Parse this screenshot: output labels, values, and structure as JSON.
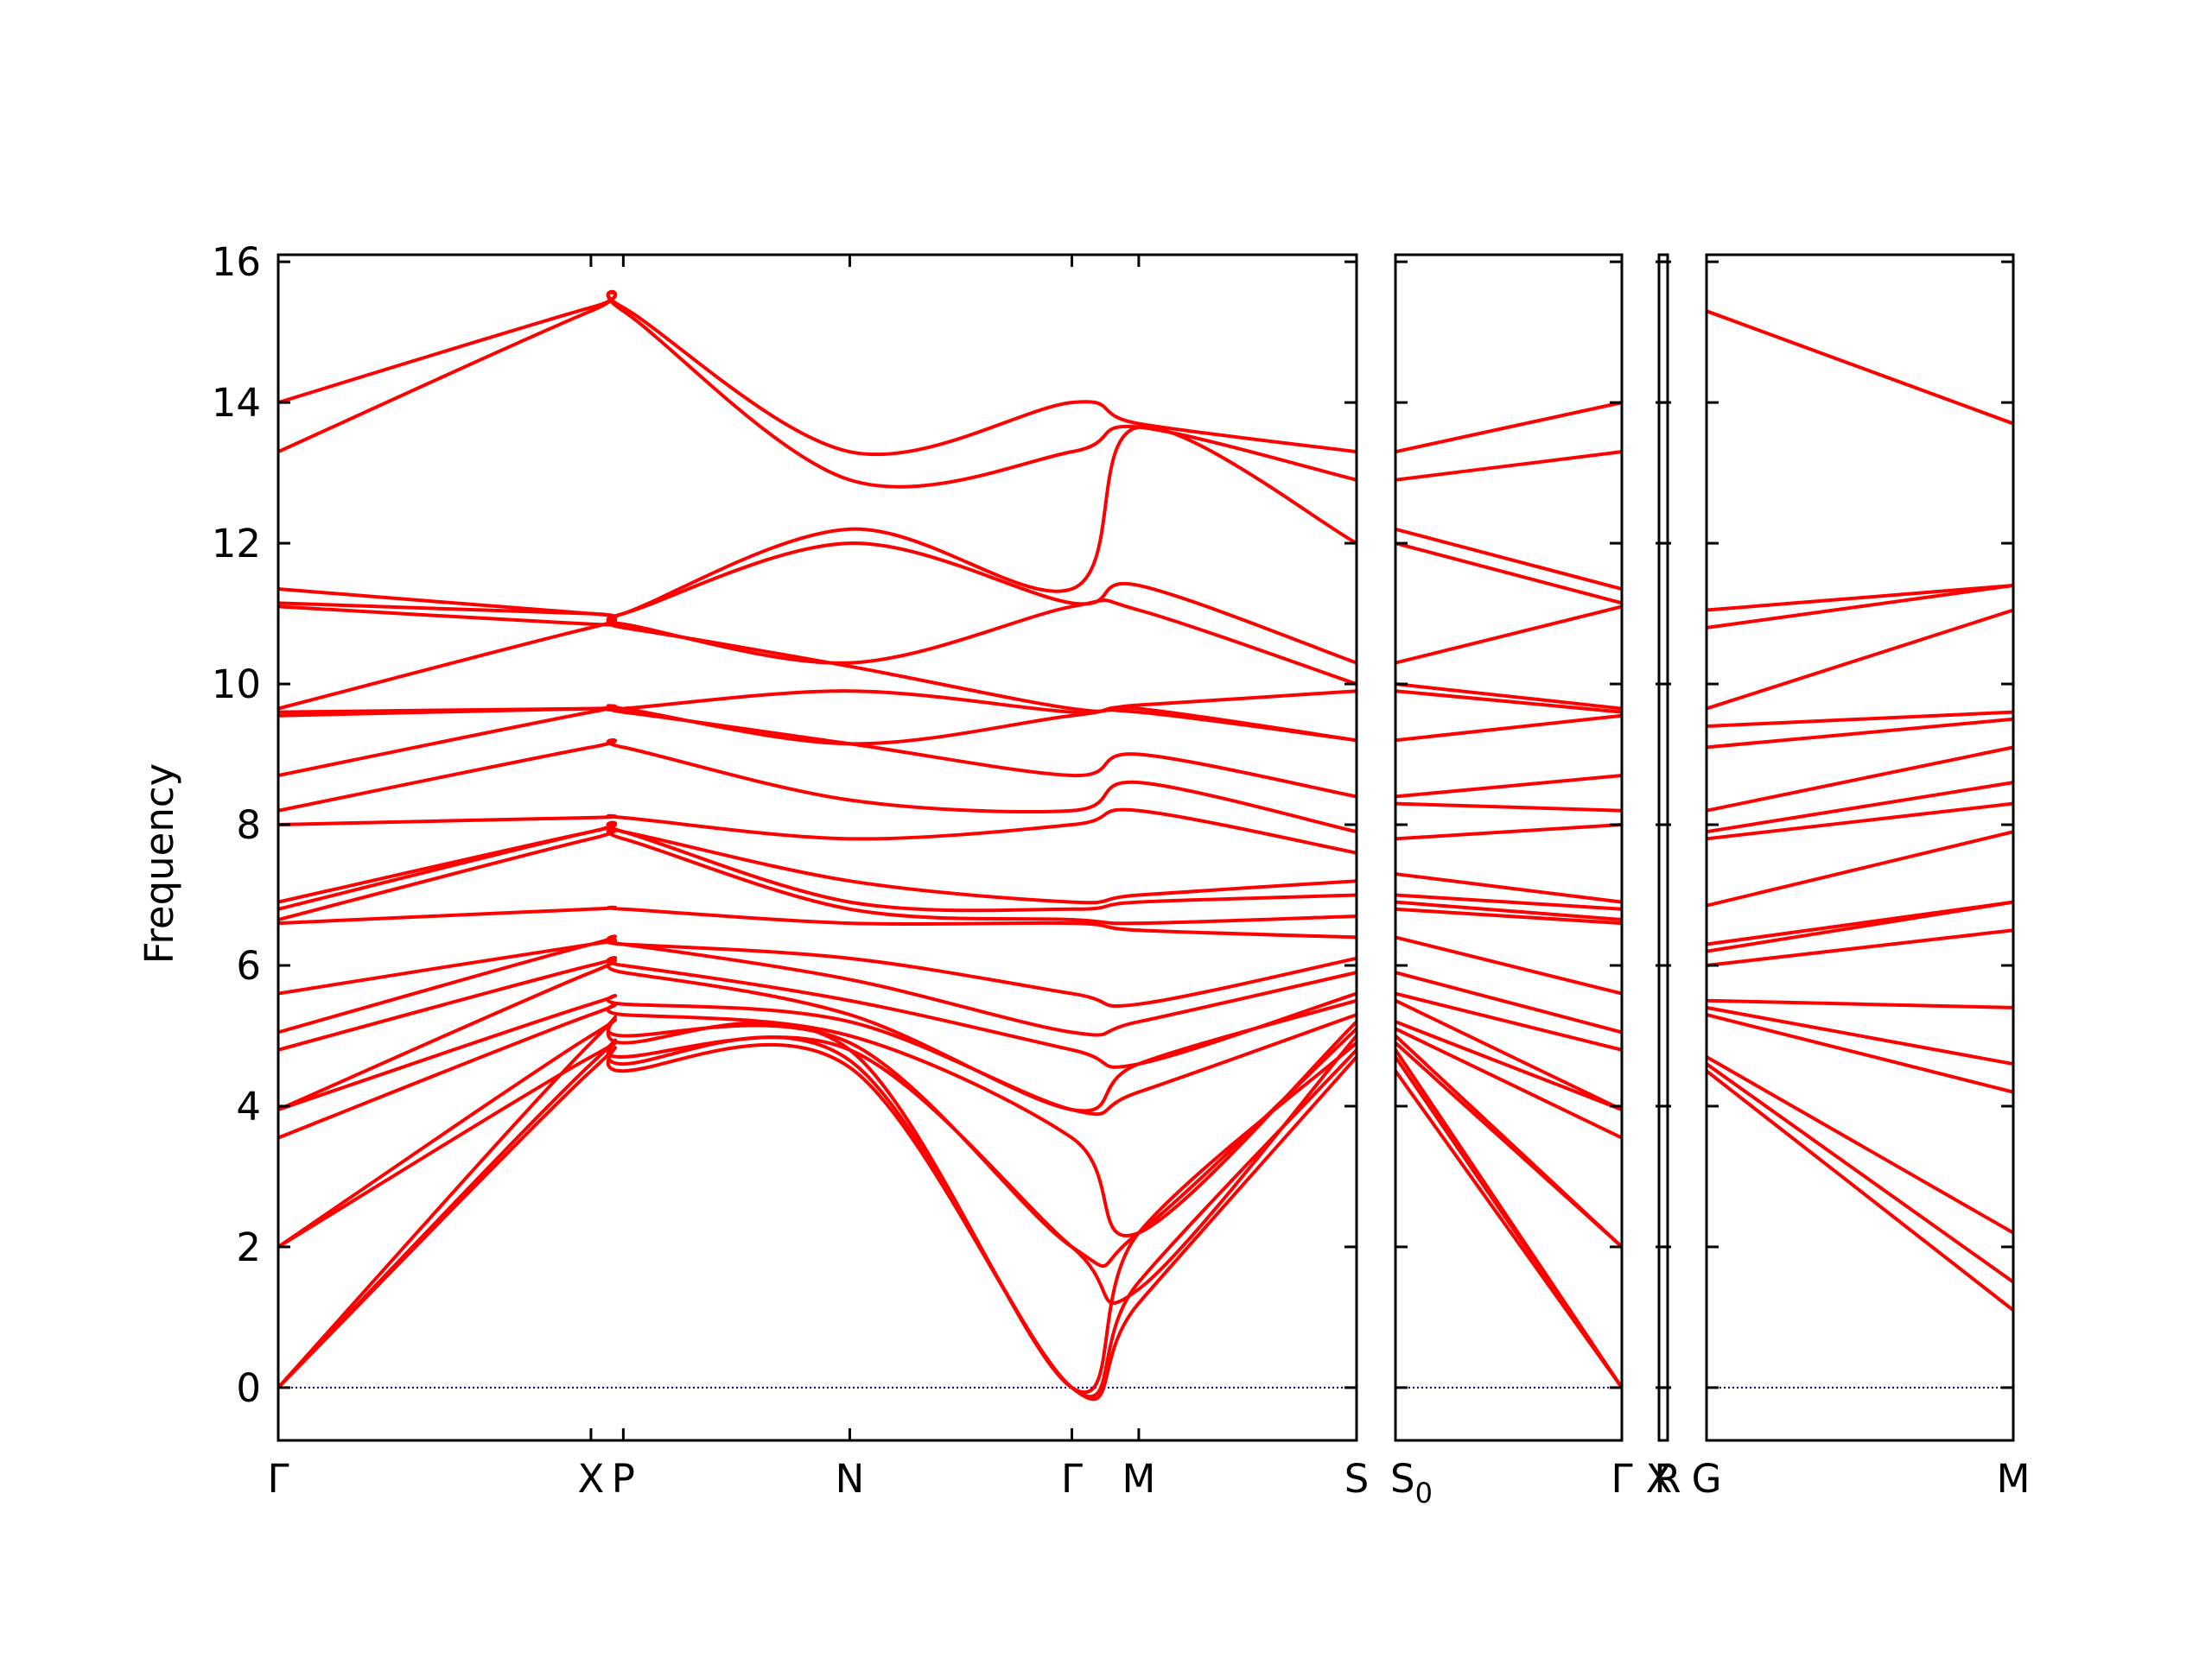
{
  "chart_data": {
    "type": "line",
    "title": "",
    "ylabel": "Frequency",
    "ylim": [
      -0.75,
      16.1
    ],
    "yticks": [
      0,
      2,
      4,
      6,
      8,
      10,
      12,
      14,
      16
    ],
    "series_color": "#ff0000",
    "zero_line_color": "#00008b",
    "grid": false,
    "panels": [
      {
        "path": [
          "Γ",
          "X",
          "P",
          "N",
          "Γ",
          "M",
          "S"
        ],
        "xlim": [
          0,
          1.0
        ],
        "point_x": [
          0,
          0.29,
          0.32,
          0.53,
          0.736,
          0.798,
          1.0
        ],
        "tick_labels": [
          "Γ",
          "X",
          "P",
          "N",
          "Γ",
          "M",
          "S"
        ]
      },
      {
        "path": [
          "S0",
          "Γ"
        ],
        "xlim": [
          0,
          1.0
        ],
        "point_x": [
          0,
          1.0
        ],
        "tick_labels": [
          "S0",
          "Γ"
        ]
      },
      {
        "path": [
          "X",
          "R"
        ],
        "xlim": [
          0,
          1.0
        ],
        "point_x": [
          0,
          1.0
        ],
        "tick_labels": [
          "X",
          "R"
        ]
      },
      {
        "path": [
          "G",
          "M"
        ],
        "xlim": [
          0,
          1.0
        ],
        "point_x": [
          0,
          1.0
        ],
        "tick_labels": [
          "G",
          "M"
        ]
      }
    ],
    "bands": {
      "panel1": [
        {
          "x": [
            0,
            0.29,
            0.32,
            0.53,
            0.736,
            0.798,
            1.0
          ],
          "y": [
            0,
            4.5,
            4.5,
            4.55,
            0,
            1.2,
            4.7
          ]
        },
        {
          "x": [
            0,
            0.29,
            0.32,
            0.53,
            0.736,
            0.798,
            1.0
          ],
          "y": [
            0,
            4.6,
            4.6,
            4.65,
            0,
            1.5,
            4.8
          ]
        },
        {
          "x": [
            0,
            0.29,
            0.32,
            0.53,
            0.736,
            0.798,
            1.0
          ],
          "y": [
            0,
            4.9,
            4.9,
            4.8,
            0,
            2.2,
            4.9
          ]
        },
        {
          "x": [
            0,
            0.29,
            0.32,
            0.53,
            0.736,
            0.798,
            1.0
          ],
          "y": [
            2.0,
            4.7,
            4.7,
            4.8,
            2.0,
            1.4,
            5.0
          ]
        },
        {
          "x": [
            0,
            0.29,
            0.32,
            0.53,
            0.736,
            0.798,
            1.0
          ],
          "y": [
            2.0,
            5.0,
            5.0,
            4.9,
            2.0,
            2.2,
            5.1
          ]
        },
        {
          "x": [
            0,
            0.29,
            0.32,
            0.53,
            0.736,
            0.798,
            1.0
          ],
          "y": [
            3.55,
            5.3,
            5.3,
            5.0,
            3.55,
            2.2,
            5.2
          ]
        },
        {
          "x": [
            0,
            0.29,
            0.32,
            0.53,
            0.736,
            0.798,
            1.0
          ],
          "y": [
            3.95,
            5.45,
            5.45,
            5.2,
            3.95,
            4.2,
            5.3
          ]
        },
        {
          "x": [
            0,
            0.29,
            0.32,
            0.53,
            0.736,
            0.798,
            1.0
          ],
          "y": [
            3.95,
            5.9,
            5.9,
            5.3,
            3.95,
            4.6,
            5.5
          ]
        },
        {
          "x": [
            0,
            0.29,
            0.32,
            0.53,
            0.736,
            0.798,
            1.0
          ],
          "y": [
            4.8,
            6.0,
            6.0,
            5.5,
            4.8,
            4.6,
            5.6
          ]
        },
        {
          "x": [
            0,
            0.29,
            0.32,
            0.53,
            0.736,
            0.798,
            1.0
          ],
          "y": [
            5.05,
            6.3,
            6.3,
            5.8,
            5.05,
            5.2,
            5.9
          ]
        },
        {
          "x": [
            0,
            0.29,
            0.32,
            0.53,
            0.736,
            0.798,
            1.0
          ],
          "y": [
            5.6,
            6.3,
            6.3,
            6.1,
            5.6,
            5.45,
            6.1
          ]
        },
        {
          "x": [
            0,
            0.29,
            0.32,
            0.53,
            0.736,
            0.798,
            1.0
          ],
          "y": [
            6.6,
            6.8,
            6.8,
            6.6,
            6.6,
            6.5,
            6.4
          ]
        },
        {
          "x": [
            0,
            0.29,
            0.32,
            0.53,
            0.736,
            0.798,
            1.0
          ],
          "y": [
            6.65,
            7.8,
            7.8,
            6.8,
            6.65,
            6.6,
            6.7
          ]
        },
        {
          "x": [
            0,
            0.29,
            0.32,
            0.53,
            0.736,
            0.798,
            1.0
          ],
          "y": [
            6.8,
            7.9,
            7.9,
            6.9,
            6.8,
            6.9,
            7.0
          ]
        },
        {
          "x": [
            0,
            0.29,
            0.32,
            0.53,
            0.736,
            0.798,
            1.0
          ],
          "y": [
            6.9,
            7.9,
            7.9,
            7.2,
            6.9,
            7.0,
            7.2
          ]
        },
        {
          "x": [
            0,
            0.29,
            0.32,
            0.53,
            0.736,
            0.798,
            1.0
          ],
          "y": [
            8.0,
            8.1,
            8.1,
            7.8,
            8.0,
            8.2,
            7.6
          ]
        },
        {
          "x": [
            0,
            0.29,
            0.32,
            0.53,
            0.736,
            0.798,
            1.0
          ],
          "y": [
            8.2,
            9.1,
            9.1,
            8.35,
            8.2,
            8.6,
            7.9
          ]
        },
        {
          "x": [
            0,
            0.29,
            0.32,
            0.53,
            0.736,
            0.798,
            1.0
          ],
          "y": [
            8.7,
            9.6,
            9.6,
            9.15,
            8.7,
            9.0,
            8.4
          ]
        },
        {
          "x": [
            0,
            0.29,
            0.32,
            0.53,
            0.736,
            0.798,
            1.0
          ],
          "y": [
            9.55,
            9.65,
            9.65,
            9.15,
            9.55,
            9.6,
            9.2
          ]
        },
        {
          "x": [
            0,
            0.29,
            0.32,
            0.53,
            0.736,
            0.798,
            1.0
          ],
          "y": [
            9.6,
            9.65,
            9.65,
            9.9,
            9.6,
            9.65,
            9.2
          ]
        },
        {
          "x": [
            0,
            0.29,
            0.32,
            0.53,
            0.736,
            0.798,
            1.0
          ],
          "y": [
            9.65,
            10.8,
            10.8,
            10.25,
            9.65,
            9.7,
            9.9
          ]
        },
        {
          "x": [
            0,
            0.29,
            0.32,
            0.53,
            0.736,
            0.798,
            1.0
          ],
          "y": [
            11.1,
            10.85,
            10.85,
            10.3,
            11.1,
            11.05,
            10.0
          ]
        },
        {
          "x": [
            0,
            0.29,
            0.32,
            0.53,
            0.736,
            0.798,
            1.0
          ],
          "y": [
            11.15,
            11.0,
            11.0,
            12.0,
            11.15,
            11.4,
            10.3
          ]
        },
        {
          "x": [
            0,
            0.29,
            0.32,
            0.53,
            0.736,
            0.798,
            1.0
          ],
          "y": [
            11.35,
            11.0,
            11.0,
            12.2,
            11.35,
            13.65,
            12.0
          ]
        },
        {
          "x": [
            0,
            0.29,
            0.32,
            0.53,
            0.736,
            0.798,
            1.0
          ],
          "y": [
            13.3,
            15.3,
            15.3,
            12.9,
            13.3,
            13.65,
            12.9
          ]
        },
        {
          "x": [
            0,
            0.29,
            0.32,
            0.53,
            0.736,
            0.798,
            1.0
          ],
          "y": [
            14.0,
            15.35,
            15.35,
            13.3,
            14.0,
            13.7,
            13.3
          ]
        }
      ],
      "panel2": [
        {
          "x": [
            0,
            1.0
          ],
          "y": [
            4.5,
            0
          ]
        },
        {
          "x": [
            0,
            1.0
          ],
          "y": [
            4.7,
            0
          ]
        },
        {
          "x": [
            0,
            1.0
          ],
          "y": [
            4.8,
            0
          ]
        },
        {
          "x": [
            0,
            1.0
          ],
          "y": [
            4.9,
            2.0
          ]
        },
        {
          "x": [
            0,
            1.0
          ],
          "y": [
            5.0,
            2.0
          ]
        },
        {
          "x": [
            0,
            1.0
          ],
          "y": [
            5.1,
            3.55
          ]
        },
        {
          "x": [
            0,
            1.0
          ],
          "y": [
            5.2,
            3.95
          ]
        },
        {
          "x": [
            0,
            1.0
          ],
          "y": [
            5.5,
            3.95
          ]
        },
        {
          "x": [
            0,
            1.0
          ],
          "y": [
            5.6,
            4.8
          ]
        },
        {
          "x": [
            0,
            1.0
          ],
          "y": [
            5.9,
            5.05
          ]
        },
        {
          "x": [
            0,
            1.0
          ],
          "y": [
            6.4,
            5.6
          ]
        },
        {
          "x": [
            0,
            1.0
          ],
          "y": [
            6.8,
            6.6
          ]
        },
        {
          "x": [
            0,
            1.0
          ],
          "y": [
            6.9,
            6.65
          ]
        },
        {
          "x": [
            0,
            1.0
          ],
          "y": [
            7.0,
            6.8
          ]
        },
        {
          "x": [
            0,
            1.0
          ],
          "y": [
            7.3,
            6.9
          ]
        },
        {
          "x": [
            0,
            1.0
          ],
          "y": [
            7.8,
            8.0
          ]
        },
        {
          "x": [
            0,
            1.0
          ],
          "y": [
            8.3,
            8.2
          ]
        },
        {
          "x": [
            0,
            1.0
          ],
          "y": [
            8.4,
            8.7
          ]
        },
        {
          "x": [
            0,
            1.0
          ],
          "y": [
            9.2,
            9.55
          ]
        },
        {
          "x": [
            0,
            1.0
          ],
          "y": [
            9.9,
            9.6
          ]
        },
        {
          "x": [
            0,
            1.0
          ],
          "y": [
            10.0,
            9.65
          ]
        },
        {
          "x": [
            0,
            1.0
          ],
          "y": [
            10.3,
            11.1
          ]
        },
        {
          "x": [
            0,
            1.0
          ],
          "y": [
            12.0,
            11.15
          ]
        },
        {
          "x": [
            0,
            1.0
          ],
          "y": [
            12.2,
            11.35
          ]
        },
        {
          "x": [
            0,
            1.0
          ],
          "y": [
            12.9,
            13.3
          ]
        },
        {
          "x": [
            0,
            1.0
          ],
          "y": [
            13.3,
            14.0
          ]
        }
      ],
      "panel4": [
        {
          "x": [
            0,
            1.0
          ],
          "y": [
            4.5,
            1.1
          ]
        },
        {
          "x": [
            0,
            1.0
          ],
          "y": [
            4.6,
            1.5
          ]
        },
        {
          "x": [
            0,
            1.0
          ],
          "y": [
            4.7,
            2.2
          ]
        },
        {
          "x": [
            0,
            1.0
          ],
          "y": [
            5.3,
            4.2
          ]
        },
        {
          "x": [
            0,
            1.0
          ],
          "y": [
            5.4,
            4.6
          ]
        },
        {
          "x": [
            0,
            1.0
          ],
          "y": [
            5.5,
            5.4
          ]
        },
        {
          "x": [
            0,
            1.0
          ],
          "y": [
            6.0,
            6.5
          ]
        },
        {
          "x": [
            0,
            1.0
          ],
          "y": [
            6.2,
            6.9
          ]
        },
        {
          "x": [
            0,
            1.0
          ],
          "y": [
            6.3,
            6.9
          ]
        },
        {
          "x": [
            0,
            1.0
          ],
          "y": [
            6.85,
            7.9
          ]
        },
        {
          "x": [
            0,
            1.0
          ],
          "y": [
            7.8,
            8.3
          ]
        },
        {
          "x": [
            0,
            1.0
          ],
          "y": [
            7.9,
            8.6
          ]
        },
        {
          "x": [
            0,
            1.0
          ],
          "y": [
            8.2,
            9.1
          ]
        },
        {
          "x": [
            0,
            1.0
          ],
          "y": [
            9.1,
            9.5
          ]
        },
        {
          "x": [
            0,
            1.0
          ],
          "y": [
            9.4,
            9.6
          ]
        },
        {
          "x": [
            0,
            1.0
          ],
          "y": [
            9.65,
            11.05
          ]
        },
        {
          "x": [
            0,
            1.0
          ],
          "y": [
            10.8,
            11.4
          ]
        },
        {
          "x": [
            0,
            1.0
          ],
          "y": [
            11.05,
            11.4
          ]
        },
        {
          "x": [
            0,
            1.0
          ],
          "y": [
            15.3,
            13.7
          ]
        }
      ]
    }
  }
}
